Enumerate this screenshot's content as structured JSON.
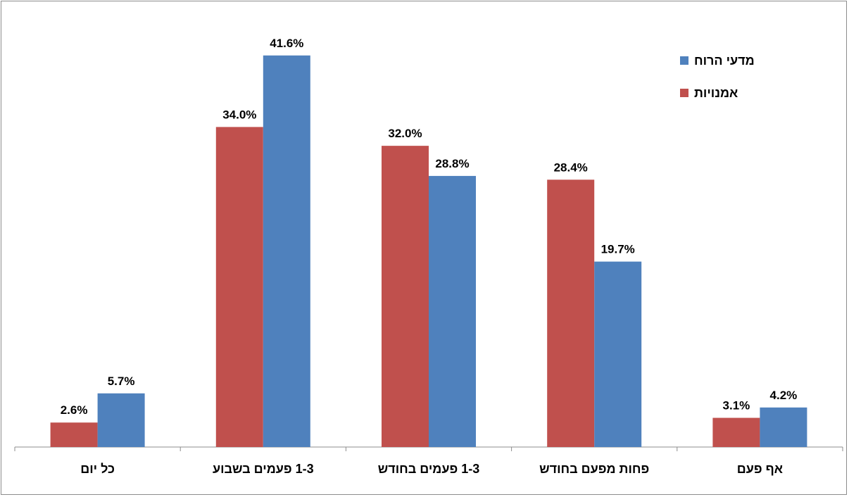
{
  "chart_data": {
    "type": "bar",
    "categories": [
      "כל יום",
      "1-3 פעמים בשבוע",
      "1-3 פעמים בחודש",
      "פחות מפעם בחודש",
      "אף פעם"
    ],
    "series": [
      {
        "name": "אמנויות",
        "color": "#C0504D",
        "values": [
          2.6,
          34.0,
          32.0,
          28.4,
          3.1
        ],
        "labels": [
          "2.6%",
          "34.0%",
          "32.0%",
          "28.4%",
          "3.1%"
        ]
      },
      {
        "name": "מדעי הרוח",
        "color": "#4F81BD",
        "values": [
          5.7,
          41.6,
          28.8,
          19.7,
          4.2
        ],
        "labels": [
          "5.7%",
          "41.6%",
          "28.8%",
          "19.7%",
          "4.2%"
        ]
      }
    ],
    "ylim": [
      0,
      44.5
    ],
    "grid": false,
    "legend": "top-right",
    "legend_order": [
      "מדעי הרוח",
      "אמנויות"
    ]
  }
}
